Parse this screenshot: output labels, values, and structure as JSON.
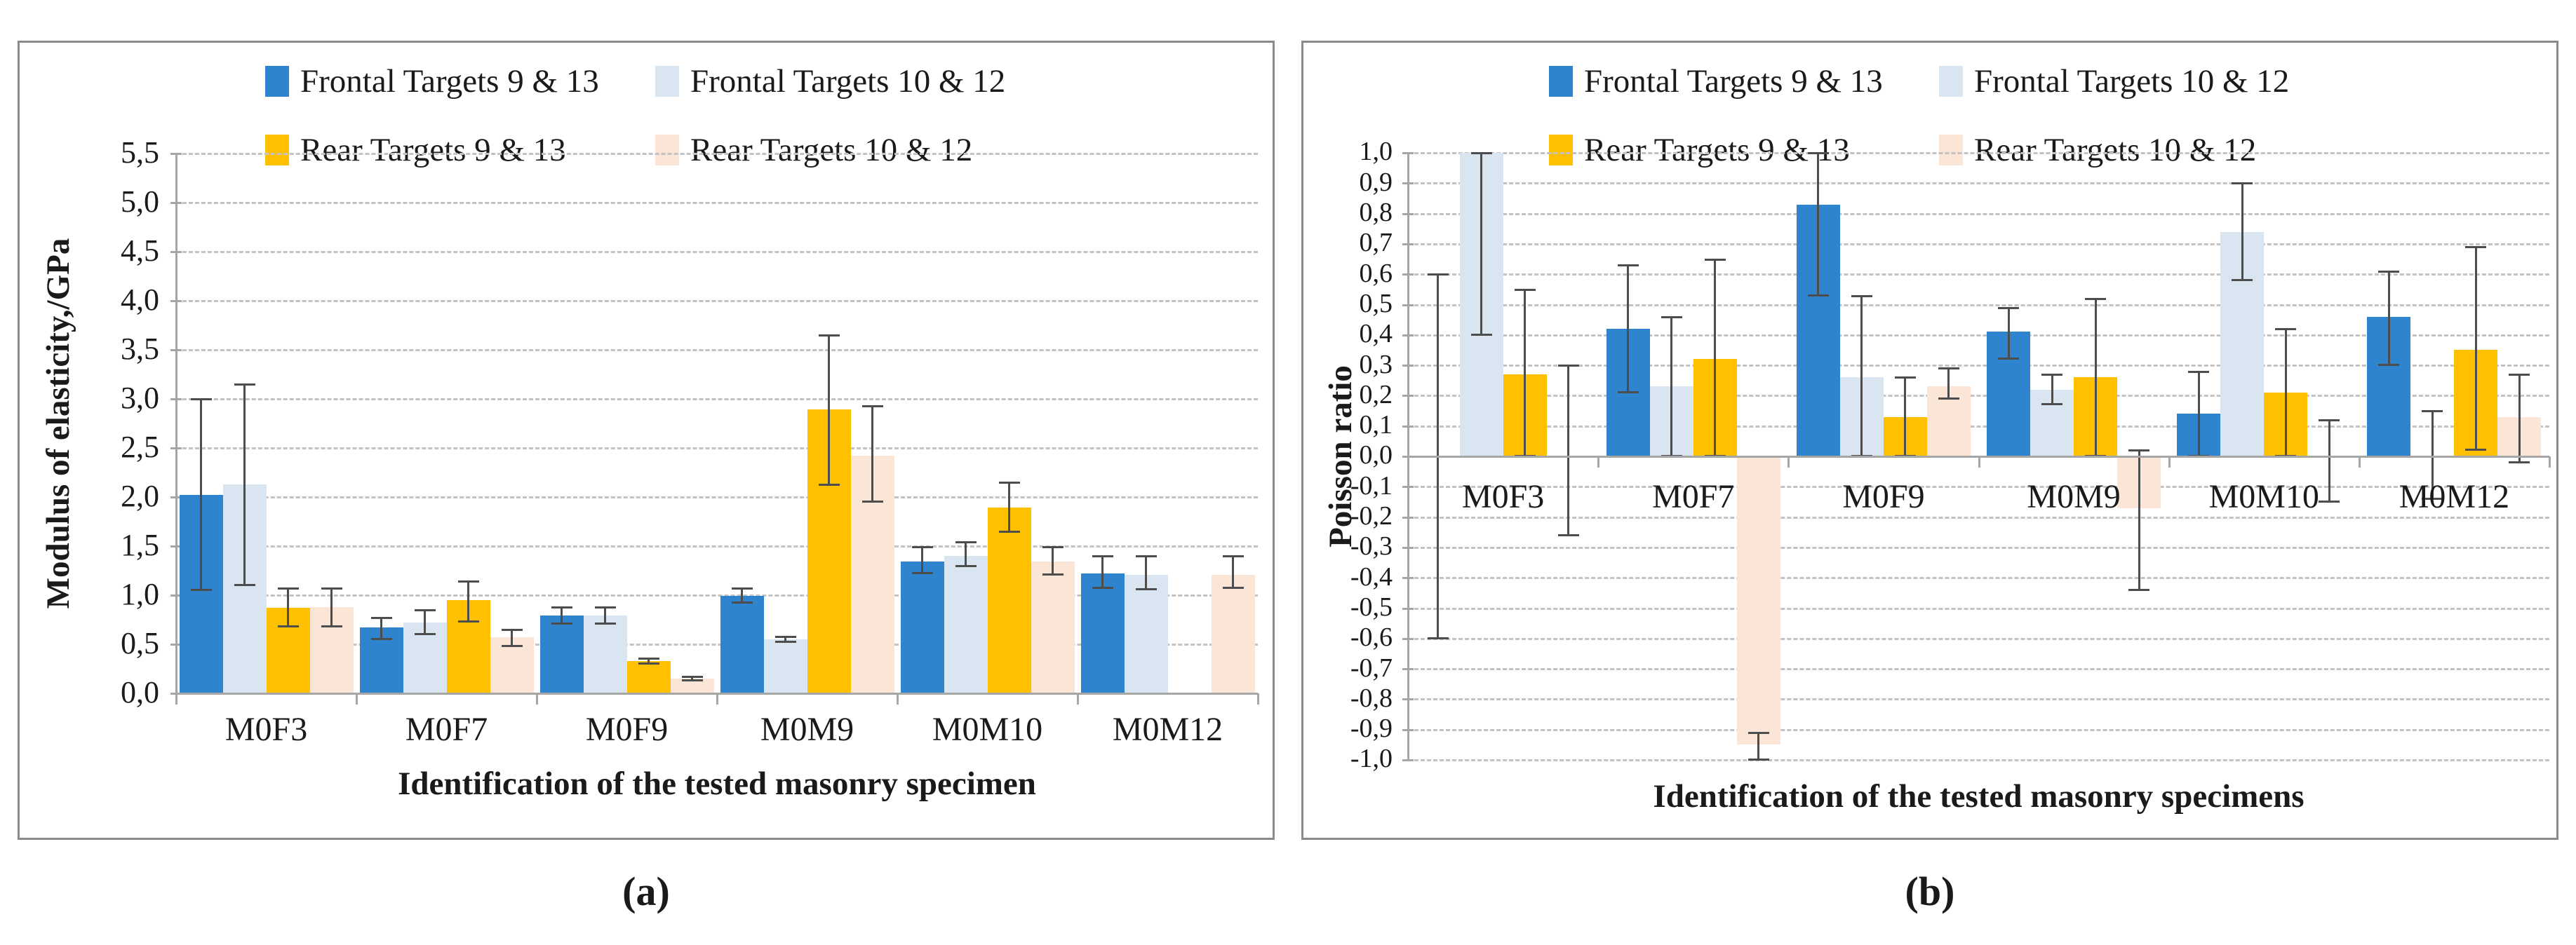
{
  "figure": {
    "caption_a": "(a)",
    "caption_b": "(b)"
  },
  "legend": {
    "items": [
      {
        "name": "Frontal Targets 9 & 13",
        "color": "#2E84CE"
      },
      {
        "name": "Frontal Targets 10 & 12",
        "color": "#D9E5F1"
      },
      {
        "name": "Rear Targets 9 & 13",
        "color": "#FFC000"
      },
      {
        "name": "Rear Targets 10 & 12",
        "color": "#FBE5D6"
      }
    ]
  },
  "chart_data": [
    {
      "id": "a",
      "type": "bar",
      "title": "",
      "xlabel": "Identification of the tested masonry specimen",
      "ylabel": "Modulus of elasticity,/GPa",
      "ylim": [
        0,
        5.5
      ],
      "ytick_step": 0.5,
      "grid": "horizontal-dashed",
      "legend_position": "top",
      "decimal_style": "comma",
      "yticks": [
        {
          "v": 5.5,
          "label": "5,5"
        },
        {
          "v": 5.0,
          "label": "5,0"
        },
        {
          "v": 4.5,
          "label": "4,5"
        },
        {
          "v": 4.0,
          "label": "4,0"
        },
        {
          "v": 3.5,
          "label": "3,5"
        },
        {
          "v": 3.0,
          "label": "3,0"
        },
        {
          "v": 2.5,
          "label": "2,5"
        },
        {
          "v": 2.0,
          "label": "2,0"
        },
        {
          "v": 1.5,
          "label": "1,5"
        },
        {
          "v": 1.0,
          "label": "1,0"
        },
        {
          "v": 0.5,
          "label": "0,5"
        },
        {
          "v": 0.0,
          "label": "0,0"
        }
      ],
      "categories": [
        "M0F3",
        "M0F7",
        "M0F9",
        "M0M9",
        "M0M10",
        "M0M12"
      ],
      "series": [
        {
          "name": "Frontal Targets 9 & 13",
          "values": [
            2.02,
            0.67,
            0.79,
            0.99,
            1.34,
            1.22
          ],
          "err_low": [
            1.05,
            0.55,
            0.71,
            0.92,
            1.22,
            1.07
          ],
          "err_high": [
            3.0,
            0.77,
            0.88,
            1.07,
            1.49,
            1.4
          ]
        },
        {
          "name": "Frontal Targets 10 & 12",
          "values": [
            2.13,
            0.72,
            0.79,
            0.55,
            1.4,
            1.21
          ],
          "err_low": [
            1.1,
            0.6,
            0.71,
            0.52,
            1.29,
            1.06
          ],
          "err_high": [
            3.15,
            0.85,
            0.88,
            0.58,
            1.54,
            1.4
          ]
        },
        {
          "name": "Rear Targets 9 & 13",
          "values": [
            0.87,
            0.95,
            0.33,
            2.89,
            1.89,
            null
          ],
          "err_low": [
            0.68,
            0.73,
            0.3,
            2.12,
            1.64,
            null
          ],
          "err_high": [
            1.07,
            1.14,
            0.36,
            3.65,
            2.15,
            null
          ]
        },
        {
          "name": "Rear Targets 10 & 12",
          "values": [
            0.88,
            0.57,
            0.15,
            2.42,
            1.34,
            1.21
          ],
          "err_low": [
            0.68,
            0.48,
            0.13,
            1.95,
            1.21,
            1.07
          ],
          "err_high": [
            1.07,
            0.65,
            0.17,
            2.93,
            1.49,
            1.4
          ]
        }
      ]
    },
    {
      "id": "b",
      "type": "bar",
      "title": "",
      "xlabel": "Identification of the tested masonry specimens",
      "ylabel": "Poisson ratio",
      "ylim": [
        -1.0,
        1.0
      ],
      "ytick_step": 0.1,
      "grid": "horizontal-dashed",
      "legend_position": "top",
      "decimal_style": "comma",
      "yticks": [
        {
          "v": 1.0,
          "label": "1,0"
        },
        {
          "v": 0.9,
          "label": "0,9"
        },
        {
          "v": 0.8,
          "label": "0,8"
        },
        {
          "v": 0.7,
          "label": "0,7"
        },
        {
          "v": 0.6,
          "label": "0,6"
        },
        {
          "v": 0.5,
          "label": "0,5"
        },
        {
          "v": 0.4,
          "label": "0,4"
        },
        {
          "v": 0.3,
          "label": "0,3"
        },
        {
          "v": 0.2,
          "label": "0,2"
        },
        {
          "v": 0.1,
          "label": "0,1"
        },
        {
          "v": 0.0,
          "label": "0,0"
        },
        {
          "v": -0.1,
          "label": "-0,1"
        },
        {
          "v": -0.2,
          "label": "-0,2"
        },
        {
          "v": -0.3,
          "label": "-0,3"
        },
        {
          "v": -0.4,
          "label": "-0,4"
        },
        {
          "v": -0.5,
          "label": "-0,5"
        },
        {
          "v": -0.6,
          "label": "-0,6"
        },
        {
          "v": -0.7,
          "label": "-0,7"
        },
        {
          "v": -0.8,
          "label": "-0,8"
        },
        {
          "v": -0.9,
          "label": "-0,9"
        },
        {
          "v": -1.0,
          "label": "-1,0"
        }
      ],
      "categories": [
        "M0F3",
        "M0F7",
        "M0F9",
        "M0M9",
        "M0M10",
        "M0M12"
      ],
      "series": [
        {
          "name": "Frontal Targets 9 & 13",
          "values": [
            0.0,
            0.42,
            0.83,
            0.41,
            0.14,
            0.46
          ],
          "err_low": [
            -0.6,
            0.21,
            0.53,
            0.32,
            0.0,
            0.3
          ],
          "err_high": [
            0.6,
            0.63,
            1.0,
            0.49,
            0.28,
            0.61
          ]
        },
        {
          "name": "Frontal Targets 10 & 12",
          "values": [
            1.0,
            0.23,
            0.26,
            0.22,
            0.74,
            0.0
          ],
          "err_low": [
            0.4,
            0.0,
            0.0,
            0.17,
            0.58,
            -0.14
          ],
          "err_high": [
            1.0,
            0.46,
            0.53,
            0.27,
            0.9,
            0.15
          ]
        },
        {
          "name": "Rear Targets 9 & 13",
          "values": [
            0.27,
            0.32,
            0.13,
            0.26,
            0.21,
            0.35
          ],
          "err_low": [
            0.0,
            0.0,
            0.0,
            0.0,
            0.0,
            0.02
          ],
          "err_high": [
            0.55,
            0.65,
            0.26,
            0.52,
            0.42,
            0.69
          ]
        },
        {
          "name": "Rear Targets 10 & 12",
          "values": [
            0.0,
            -0.95,
            0.23,
            -0.17,
            0.0,
            0.13
          ],
          "err_low": [
            -0.26,
            -1.0,
            0.19,
            -0.44,
            -0.15,
            -0.02
          ],
          "err_high": [
            0.3,
            -0.91,
            0.29,
            0.02,
            0.12,
            0.27
          ]
        }
      ]
    }
  ]
}
